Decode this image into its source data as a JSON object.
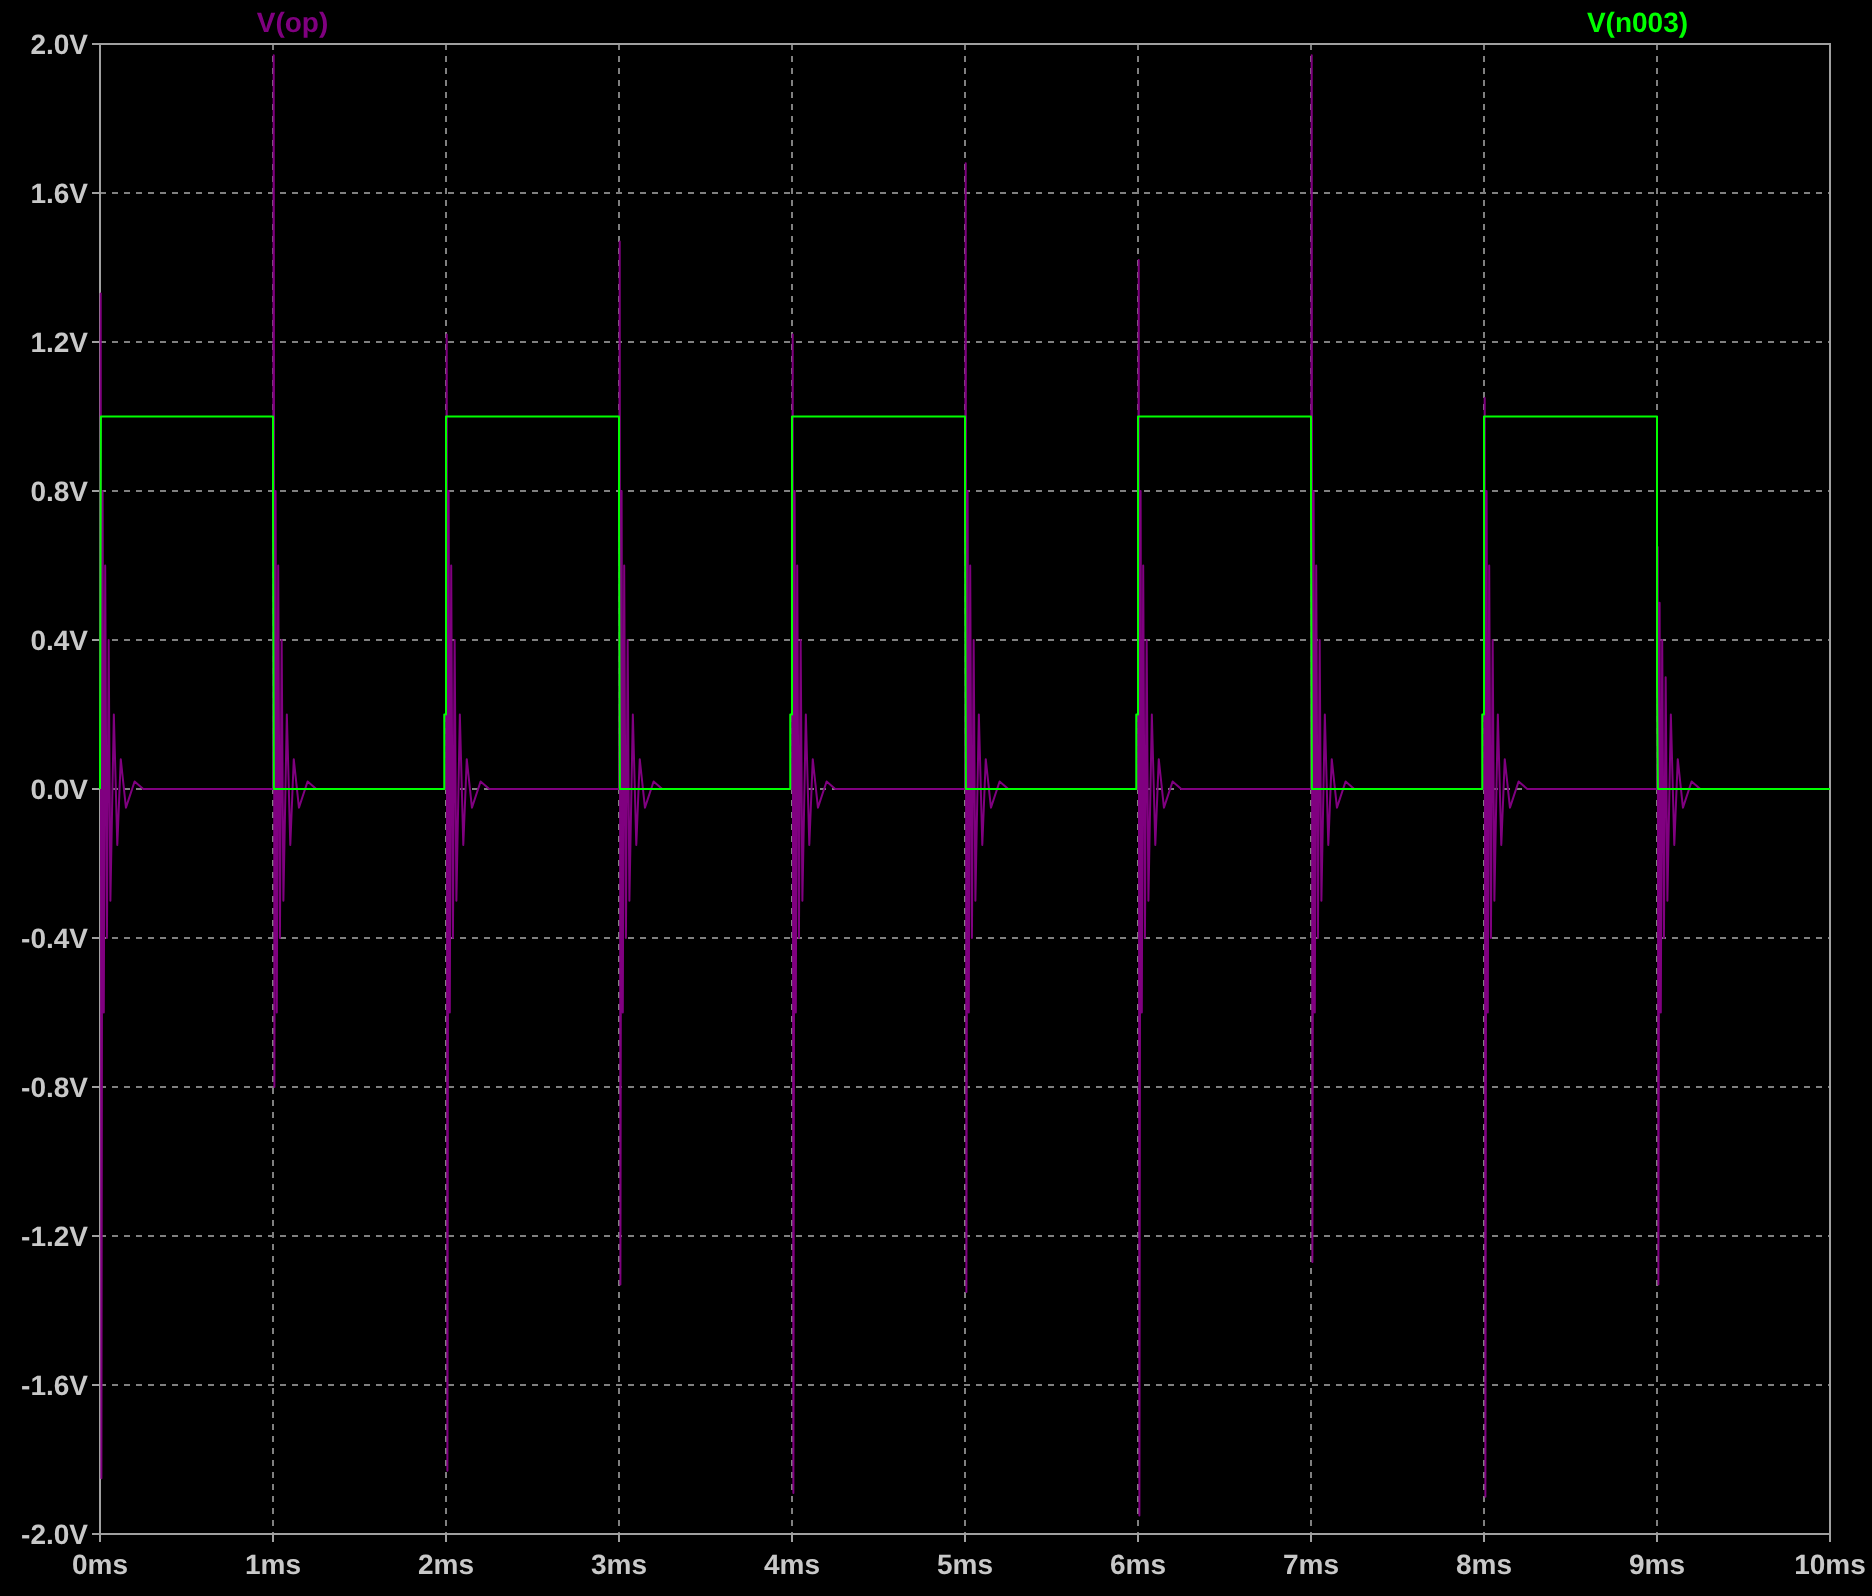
{
  "chart_data": {
    "type": "line",
    "xlim": [
      0,
      10
    ],
    "ylim": [
      -2,
      2
    ],
    "xticks": [
      {
        "value": 0,
        "label": "0ms"
      },
      {
        "value": 1,
        "label": "1ms"
      },
      {
        "value": 2,
        "label": "2ms"
      },
      {
        "value": 3,
        "label": "3ms"
      },
      {
        "value": 4,
        "label": "4ms"
      },
      {
        "value": 5,
        "label": "5ms"
      },
      {
        "value": 6,
        "label": "6ms"
      },
      {
        "value": 7,
        "label": "7ms"
      },
      {
        "value": 8,
        "label": "8ms"
      },
      {
        "value": 9,
        "label": "9ms"
      },
      {
        "value": 10,
        "label": "10ms"
      }
    ],
    "yticks": [
      {
        "value": -2,
        "label": "-2.0V"
      },
      {
        "value": -1.6,
        "label": "-1.6V"
      },
      {
        "value": -1.2,
        "label": "-1.2V"
      },
      {
        "value": -0.8,
        "label": "-0.8V"
      },
      {
        "value": -0.4,
        "label": "-0.4V"
      },
      {
        "value": 0,
        "label": "0.0V"
      },
      {
        "value": 0.4,
        "label": "0.4V"
      },
      {
        "value": 0.8,
        "label": "0.8V"
      },
      {
        "value": 1.2,
        "label": "1.2V"
      },
      {
        "value": 1.6,
        "label": "1.6V"
      },
      {
        "value": 2,
        "label": "2.0V"
      }
    ],
    "grid": true,
    "legend": "top",
    "line_style": "solid",
    "marker": "none",
    "series": [
      {
        "name": "V(op)",
        "color": "#800080",
        "x": [
          0,
          0.004,
          0.008,
          0.015,
          0.022,
          0.03,
          0.04,
          0.05,
          0.06,
          0.08,
          0.1,
          0.12,
          0.15,
          0.2,
          0.25,
          1,
          1.004,
          1.008,
          1.015,
          1.022,
          1.03,
          1.04,
          1.05,
          1.06,
          1.08,
          1.1,
          1.12,
          1.15,
          1.2,
          1.25,
          2,
          2.004,
          2.008,
          2.015,
          2.022,
          2.03,
          2.04,
          2.05,
          2.06,
          2.08,
          2.1,
          2.12,
          2.15,
          2.2,
          2.25,
          3,
          3.004,
          3.008,
          3.015,
          3.022,
          3.03,
          3.04,
          3.05,
          3.06,
          3.08,
          3.1,
          3.12,
          3.15,
          3.2,
          3.25,
          4,
          4.004,
          4.008,
          4.015,
          4.022,
          4.03,
          4.04,
          4.05,
          4.06,
          4.08,
          4.1,
          4.12,
          4.15,
          4.2,
          4.25,
          5,
          5.004,
          5.008,
          5.015,
          5.022,
          5.03,
          5.04,
          5.05,
          5.06,
          5.08,
          5.1,
          5.12,
          5.15,
          5.2,
          5.25,
          6,
          6.004,
          6.008,
          6.015,
          6.022,
          6.03,
          6.04,
          6.05,
          6.06,
          6.08,
          6.1,
          6.12,
          6.15,
          6.2,
          6.25,
          7,
          7.004,
          7.008,
          7.015,
          7.022,
          7.03,
          7.04,
          7.05,
          7.06,
          7.08,
          7.1,
          7.12,
          7.15,
          7.2,
          7.25,
          8,
          8.004,
          8.008,
          8.015,
          8.022,
          8.03,
          8.04,
          8.05,
          8.06,
          8.08,
          8.1,
          8.12,
          8.15,
          8.2,
          8.25,
          9,
          9.004,
          9.008,
          9.015,
          9.022,
          9.03,
          9.04,
          9.05,
          9.06,
          9.08,
          9.1,
          9.12,
          9.15,
          9.2,
          9.25,
          10
        ],
        "values": [
          0,
          1.33,
          -1.85,
          0.8,
          -0.6,
          0.6,
          -0.4,
          0.4,
          -0.3,
          0.2,
          -0.15,
          0.08,
          -0.05,
          0.02,
          0,
          0,
          1.97,
          -0.8,
          0.8,
          -0.6,
          0.6,
          -0.4,
          0.4,
          -0.3,
          0.2,
          -0.15,
          0.08,
          -0.05,
          0.02,
          0,
          0,
          1.22,
          -1.83,
          0.8,
          -0.6,
          0.6,
          -0.4,
          0.4,
          -0.3,
          0.2,
          -0.15,
          0.08,
          -0.05,
          0.02,
          0,
          0,
          1.47,
          -1.33,
          0.8,
          -0.6,
          0.6,
          -0.4,
          0.4,
          -0.3,
          0.2,
          -0.15,
          0.08,
          -0.05,
          0.02,
          0,
          0,
          1.22,
          -1.89,
          0.8,
          -0.6,
          0.6,
          -0.4,
          0.4,
          -0.3,
          0.2,
          -0.15,
          0.08,
          -0.05,
          0.02,
          0,
          0,
          1.68,
          -1.35,
          0.8,
          -0.6,
          0.6,
          -0.4,
          0.4,
          -0.3,
          0.2,
          -0.15,
          0.08,
          -0.05,
          0.02,
          0,
          0,
          1.42,
          -1.95,
          0.8,
          -0.6,
          0.6,
          -0.4,
          0.4,
          -0.3,
          0.2,
          -0.15,
          0.08,
          -0.05,
          0.02,
          0,
          0,
          1.97,
          -1.27,
          0.8,
          -0.6,
          0.6,
          -0.4,
          0.4,
          -0.3,
          0.2,
          -0.15,
          0.08,
          -0.05,
          0.02,
          0,
          0,
          1.05,
          -1.9,
          0.8,
          -0.6,
          0.6,
          -0.4,
          0.4,
          -0.3,
          0.2,
          -0.15,
          0.08,
          -0.05,
          0.02,
          0,
          0,
          0.65,
          -1.33,
          0.5,
          -0.6,
          0.4,
          -0.4,
          0.3,
          -0.3,
          0.2,
          -0.15,
          0.08,
          -0.05,
          0.02,
          0,
          0
        ]
      },
      {
        "name": "V(n003)",
        "color": "#00ff00",
        "x": [
          0,
          0.005,
          1,
          1,
          1.005,
          1.99,
          1.99,
          2,
          2,
          3,
          3,
          3.005,
          3.99,
          3.99,
          4,
          4,
          5,
          5,
          5.005,
          5.99,
          5.99,
          6,
          6,
          7,
          7,
          7.005,
          7.99,
          7.99,
          8,
          8,
          9,
          9,
          9.005,
          10
        ],
        "values": [
          0,
          1,
          1,
          0.75,
          0,
          0,
          0.2,
          0.2,
          1,
          1,
          0.75,
          0,
          0,
          0.2,
          0.2,
          1,
          1,
          0.75,
          0,
          0,
          0.2,
          0.2,
          1,
          1,
          0.75,
          0,
          0,
          0.2,
          0.2,
          1,
          1,
          0.28,
          0,
          0
        ]
      }
    ]
  }
}
